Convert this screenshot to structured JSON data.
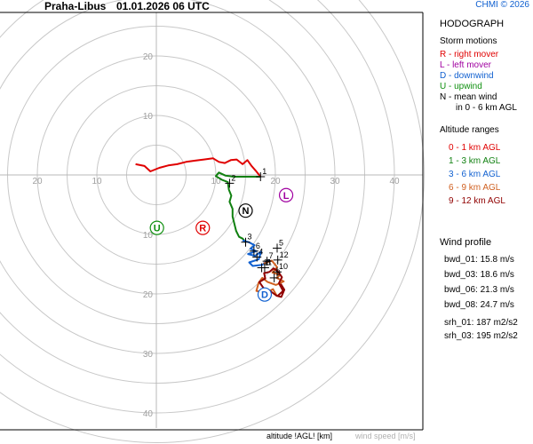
{
  "header": {
    "station": "Praha-Libus",
    "datetime": "01.01.2026 06 UTC",
    "credit": "CHMI © 2026"
  },
  "legend": {
    "title": "HODOGRAPH",
    "storm_motions_title": "Storm motions",
    "storm_motions": [
      {
        "text": "R - right mover",
        "color": "#e00000"
      },
      {
        "text": "L - left mover",
        "color": "#a000a0"
      },
      {
        "text": "D - downwind",
        "color": "#1060d0"
      },
      {
        "text": "U - upwind",
        "color": "#109010"
      },
      {
        "text": "N - mean wind",
        "color": "#000000"
      },
      {
        "text": "in 0 - 6 km AGL",
        "color": "#000000"
      }
    ],
    "altitude_title": "Altitude ranges",
    "altitude_ranges": [
      {
        "text": "0 - 1 km AGL",
        "color": "#e00000"
      },
      {
        "text": "1 - 3 km AGL",
        "color": "#108010"
      },
      {
        "text": "3 - 6 km AGL",
        "color": "#1060d0"
      },
      {
        "text": "6 - 9 km AGL",
        "color": "#d06020"
      },
      {
        "text": "9 - 12 km AGL",
        "color": "#900000"
      }
    ]
  },
  "wind_profile": {
    "title": "Wind profile",
    "rows": [
      "bwd_01: 15.8 m/s",
      "bwd_03: 18.6 m/s",
      "bwd_06: 21.3 m/s",
      "bwd_08: 24.7 m/s",
      "srh_01: 187 m2/s2",
      "srh_03: 195 m2/s2"
    ]
  },
  "footer": {
    "altitude_label": "altitude !AGL! [km]",
    "speed_label": "wind speed [m/s]"
  },
  "chart_data": {
    "type": "hodograph",
    "ring_step_ms": 5,
    "ring_max_ms": 45,
    "x_tick_labels": [
      "20",
      "10",
      "10",
      "20",
      "30",
      "40"
    ],
    "x_tick_values": [
      -20,
      -10,
      10,
      20,
      30,
      40
    ],
    "y_tick_labels": [
      "20",
      "10",
      "10",
      "20",
      "30",
      "40"
    ],
    "y_tick_values": [
      20,
      10,
      -10,
      -20,
      -30,
      -40
    ],
    "series": [
      {
        "range": "0 - 1 km AGL",
        "color": "#e00000",
        "points": [
          [
            -3.5,
            1.8
          ],
          [
            -2,
            1.5
          ],
          [
            -1,
            0.6
          ],
          [
            0.5,
            1.2
          ],
          [
            2,
            1.6
          ],
          [
            3.5,
            1.8
          ],
          [
            5,
            2.2
          ],
          [
            6.5,
            2.4
          ],
          [
            8,
            2.6
          ],
          [
            9.5,
            2.8
          ],
          [
            10.5,
            2.2
          ],
          [
            11.5,
            2.0
          ],
          [
            12.5,
            2.5
          ],
          [
            13.5,
            2.6
          ],
          [
            14.5,
            1.8
          ],
          [
            15.3,
            2.5
          ],
          [
            16,
            1.5
          ],
          [
            16.7,
            0.7
          ],
          [
            17.5,
            -0.3
          ]
        ]
      },
      {
        "range": "1 - 3 km AGL",
        "color": "#108010",
        "points": [
          [
            17.5,
            -0.3
          ],
          [
            16,
            -0.3
          ],
          [
            14.5,
            -0.3
          ],
          [
            13,
            -0.3
          ],
          [
            11.6,
            -0.1
          ],
          [
            10.5,
            0.4
          ],
          [
            10,
            -0.2
          ],
          [
            11,
            -0.8
          ],
          [
            12,
            -1.2
          ],
          [
            12.2,
            -2.5
          ],
          [
            12.6,
            -3.5
          ],
          [
            12.3,
            -4.5
          ],
          [
            12.8,
            -5.7
          ],
          [
            12.8,
            -7
          ],
          [
            13.1,
            -8.2
          ],
          [
            13.4,
            -9.4
          ],
          [
            13.9,
            -10.4
          ],
          [
            14.5,
            -10.7
          ],
          [
            15,
            -11.3
          ]
        ]
      },
      {
        "range": "3 - 6 km AGL",
        "color": "#1060d0",
        "points": [
          [
            14.5,
            -11
          ],
          [
            15.5,
            -11.3
          ],
          [
            16.5,
            -11.8
          ],
          [
            15.8,
            -12.4
          ],
          [
            16.8,
            -12.8
          ],
          [
            15.4,
            -13.3
          ],
          [
            16.6,
            -13.6
          ],
          [
            17.6,
            -12.9
          ],
          [
            17.2,
            -14.2
          ],
          [
            15.6,
            -14.7
          ],
          [
            16.2,
            -15.3
          ],
          [
            17.8,
            -15.1
          ],
          [
            18.9,
            -14.3
          ],
          [
            18,
            -14.9
          ]
        ]
      },
      {
        "range": "6 - 9 km AGL",
        "color": "#d06020",
        "points": [
          [
            18,
            -14.9
          ],
          [
            19.4,
            -14.4
          ],
          [
            20.3,
            -15.5
          ],
          [
            19.5,
            -16.4
          ],
          [
            20.8,
            -16.8
          ],
          [
            20.2,
            -17.3
          ],
          [
            21.4,
            -17.9
          ],
          [
            20.1,
            -18.5
          ],
          [
            18.7,
            -18
          ],
          [
            17.8,
            -17.3
          ],
          [
            17.2,
            -18.1
          ],
          [
            16.8,
            -19.5
          ],
          [
            18.4,
            -19.8
          ],
          [
            19.6,
            -19.2
          ],
          [
            20.3,
            -20.4
          ]
        ]
      },
      {
        "range": "9 - 12 km AGL",
        "color": "#900000",
        "points": [
          [
            20.3,
            -20.4
          ],
          [
            21.3,
            -19.5
          ],
          [
            20.6,
            -18.2
          ],
          [
            21.1,
            -17.2
          ],
          [
            20.4,
            -16.2
          ],
          [
            19.7,
            -15.7
          ],
          [
            19,
            -16.3
          ],
          [
            18.1,
            -16.5
          ],
          [
            18.3,
            -17.4
          ],
          [
            17.3,
            -18
          ],
          [
            18,
            -19
          ],
          [
            19,
            -19.4
          ],
          [
            20.2,
            -20.3
          ],
          [
            21,
            -20.5
          ],
          [
            21.5,
            -19.3
          ],
          [
            20.9,
            -18.3
          ]
        ]
      }
    ],
    "altitude_marks": [
      {
        "label": "1",
        "u": 17.5,
        "v": -0.3
      },
      {
        "label": "2",
        "u": 12.3,
        "v": -1.4
      },
      {
        "label": "3",
        "u": 15.0,
        "v": -11.3
      },
      {
        "label": "4",
        "u": 16.9,
        "v": -13.8
      },
      {
        "label": "5",
        "u": 20.3,
        "v": -12.3
      },
      {
        "label": "6",
        "u": 16.4,
        "v": -12.8
      },
      {
        "label": "7",
        "u": 18.6,
        "v": -14.5
      },
      {
        "label": "8",
        "u": 18.2,
        "v": -15.6
      },
      {
        "label": "9",
        "u": 19.8,
        "v": -17.3
      },
      {
        "label": "10",
        "u": 20.3,
        "v": -16.3
      },
      {
        "label": "11",
        "u": 17.7,
        "v": -15.6
      },
      {
        "label": "12",
        "u": 20.4,
        "v": -14.3
      }
    ],
    "storm_markers": [
      {
        "letter": "L",
        "u": 21.8,
        "v": -3.4,
        "color": "#a000a0"
      },
      {
        "letter": "N",
        "u": 15.0,
        "v": -6.0,
        "color": "#000000"
      },
      {
        "letter": "R",
        "u": 7.8,
        "v": -8.9,
        "color": "#e00000"
      },
      {
        "letter": "U",
        "u": 0.1,
        "v": -8.9,
        "color": "#109010"
      },
      {
        "letter": "D",
        "u": 18.2,
        "v": -20.1,
        "color": "#1060d0"
      }
    ]
  }
}
